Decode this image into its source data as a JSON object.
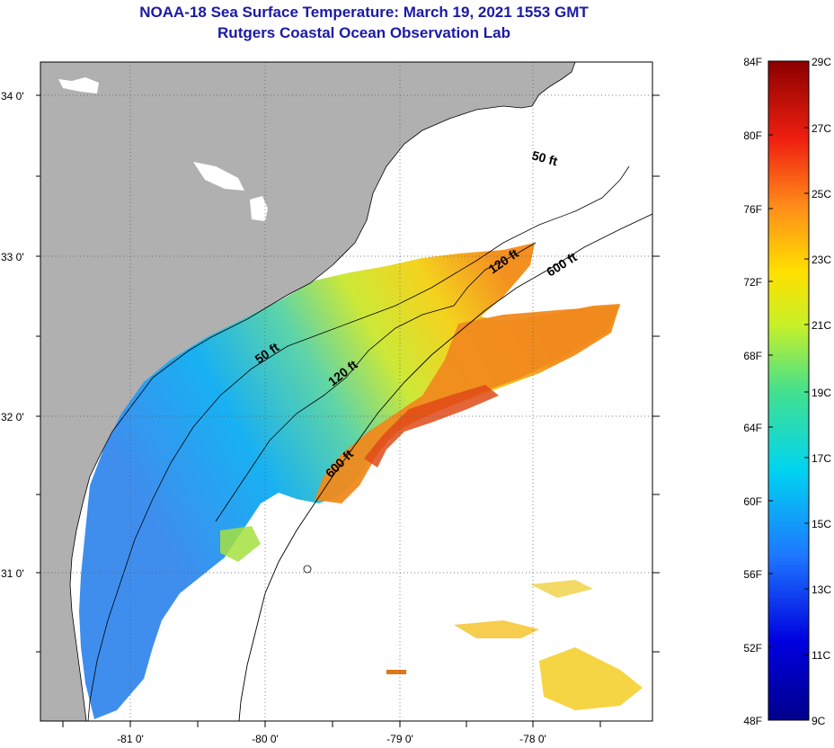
{
  "title": {
    "line1": "NOAA-18 Sea Surface Temperature:  March 19, 2021 1553 GMT",
    "line2": "Rutgers Coastal Ocean Observation Lab"
  },
  "map": {
    "lat_labels": [
      "34 0'",
      "33 0'",
      "32 0'",
      "31 0'"
    ],
    "lon_labels": [
      "-81 0'",
      "-80 0'",
      "-79 0'",
      "-78 0'"
    ],
    "isobaths": {
      "shelf_50": "50 ft",
      "inner_50": "50 ft",
      "mid_120": "120 ft",
      "north_120": "120 ft",
      "north_600": "600 ft",
      "south_600": "600 ft"
    }
  },
  "colorbar": {
    "fahrenheit_labels": [
      "84F",
      "80F",
      "76F",
      "72F",
      "68F",
      "64F",
      "60F",
      "56F",
      "52F",
      "48F"
    ],
    "celsius_labels": [
      "29C",
      "27C",
      "25C",
      "23C",
      "21C",
      "19C",
      "17C",
      "15C",
      "13C",
      "11C",
      "9C"
    ]
  },
  "colors": {
    "title": "#1a1aa6",
    "land": "#b0b0b0",
    "cloud": "#ffffff",
    "cold": "#00008b",
    "warm": "#8b0000"
  }
}
